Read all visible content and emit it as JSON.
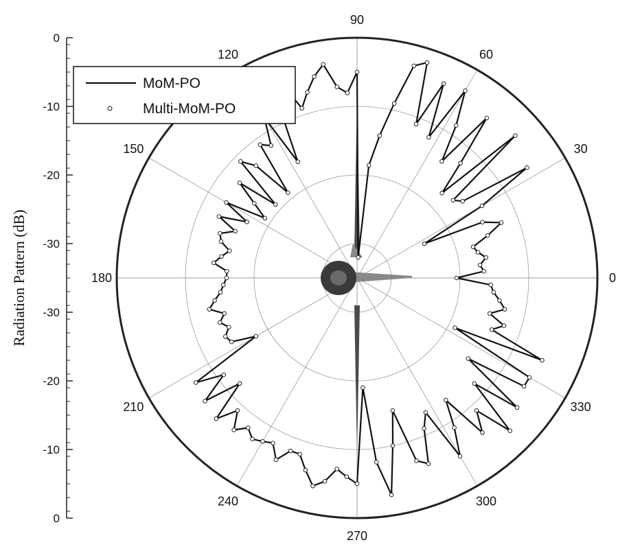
{
  "chart_data": {
    "type": "line",
    "subtype": "polar",
    "title": "",
    "ylabel": "Radiation Pattern (dB)",
    "radial_unit": "dB",
    "rlim": [
      -35,
      0
    ],
    "radial_tick_labels": [
      "0",
      "-10",
      "-20",
      "-30",
      "-30",
      "-20",
      "-10",
      "0"
    ],
    "angle_tick_labels": [
      "0",
      "30",
      "60",
      "90",
      "120",
      "150",
      "180",
      "210",
      "240",
      "270",
      "300",
      "330"
    ],
    "angle_unit": "deg",
    "grid": true,
    "legend": {
      "position": "top-left",
      "entries": [
        "MoM-PO",
        "Multi-MoM-PO"
      ]
    },
    "series": [
      {
        "name": "MoM-PO",
        "style": "solid-line",
        "angles": [
          0,
          3,
          6,
          9,
          12,
          15,
          18,
          21,
          24,
          27,
          30,
          33,
          36,
          39,
          42,
          45,
          48,
          51,
          54,
          57,
          60,
          63,
          66,
          69,
          72,
          75,
          78,
          81,
          84,
          87,
          90,
          93,
          96,
          99,
          102,
          105,
          108,
          111,
          114,
          117,
          120,
          123,
          126,
          129,
          132,
          135,
          138,
          141,
          144,
          147,
          150,
          153,
          156,
          159,
          162,
          165,
          168,
          171,
          174,
          177,
          180,
          183,
          186,
          189,
          192,
          195,
          198,
          201,
          204,
          207,
          210,
          213,
          216,
          219,
          222,
          225,
          228,
          231,
          234,
          237,
          240,
          243,
          246,
          249,
          252,
          255,
          258,
          261,
          264,
          267,
          270,
          273,
          276,
          279,
          282,
          285,
          288,
          291,
          294,
          297,
          300,
          303,
          306,
          309,
          312,
          315,
          318,
          321,
          324,
          327,
          330,
          333,
          336,
          339,
          342,
          345,
          348,
          351,
          354,
          357
        ],
        "values": [
          -20.5,
          -16.5,
          -17,
          -16,
          -17,
          -17.5,
          -15,
          -12.5,
          -15,
          -24,
          -14,
          -5.5,
          -16,
          -17,
          -4,
          -17.5,
          -12.5,
          -5,
          -14,
          -8.5,
          -3.5,
          -12,
          -4,
          -11,
          -2,
          -3,
          -9,
          -14,
          -18.5,
          -32,
          -5,
          -8,
          -7,
          -3.5,
          -5,
          -7,
          -9,
          -5,
          -5.5,
          -16,
          -8,
          -12,
          -11,
          -19,
          -13,
          -11,
          -19,
          -13,
          -16.5,
          -19,
          -13,
          -17,
          -13,
          -16,
          -14,
          -14.5,
          -16,
          -15,
          -14,
          -16,
          -16,
          -15.5,
          -15,
          -14,
          -13,
          -15,
          -14,
          -15,
          -14,
          -14.5,
          -18,
          -7,
          -11,
          -6.5,
          -12,
          -6,
          -9,
          -6.5,
          -8,
          -7,
          -7.5,
          -8,
          -6,
          -8,
          -8,
          -6,
          -4,
          -5,
          -7,
          -6,
          -5,
          -19,
          -8,
          -3,
          -10,
          -15,
          -7,
          -6,
          -11,
          -13,
          -5,
          -9,
          -13,
          -6,
          -9,
          -3.5,
          -12,
          -5,
          -15,
          -6,
          -6,
          -19,
          -5.5,
          -14,
          -12.5,
          -15,
          -13,
          -14,
          -15,
          -15.5
        ]
      },
      {
        "name": "Multi-MoM-PO",
        "style": "hollow-circle-markers",
        "angles": [
          0,
          3,
          6,
          9,
          12,
          15,
          18,
          21,
          24,
          27,
          30,
          33,
          36,
          39,
          42,
          45,
          48,
          51,
          54,
          57,
          60,
          63,
          66,
          69,
          72,
          75,
          78,
          81,
          84,
          87,
          90,
          93,
          96,
          99,
          102,
          105,
          108,
          111,
          114,
          117,
          120,
          123,
          126,
          129,
          132,
          135,
          138,
          141,
          144,
          147,
          150,
          153,
          156,
          159,
          162,
          165,
          168,
          171,
          174,
          177,
          180,
          183,
          186,
          189,
          192,
          195,
          198,
          201,
          204,
          207,
          210,
          213,
          216,
          219,
          222,
          225,
          228,
          231,
          234,
          237,
          240,
          243,
          246,
          249,
          252,
          255,
          258,
          261,
          264,
          267,
          270,
          273,
          276,
          279,
          282,
          285,
          288,
          291,
          294,
          297,
          300,
          303,
          306,
          309,
          312,
          315,
          318,
          321,
          324,
          327,
          330,
          333,
          336,
          339,
          342,
          345,
          348,
          351,
          354,
          357
        ],
        "values": [
          -20.5,
          -16.5,
          -17,
          -16,
          -17,
          -17.5,
          -15,
          -12.5,
          -15,
          -24,
          -14,
          -5.5,
          -16,
          -17,
          -4,
          -17.5,
          -12.5,
          -5,
          -14,
          -8.5,
          -3.5,
          -12,
          -4,
          -11,
          -2,
          -3,
          -9,
          -14,
          -18.5,
          -32,
          -5,
          -8,
          -7,
          -3.5,
          -5,
          -7,
          -9,
          -5,
          -5.5,
          -16,
          -8,
          -12,
          -11,
          -19,
          -13,
          -11,
          -19,
          -13,
          -16.5,
          -19,
          -13,
          -17,
          -13,
          -16,
          -14,
          -14.5,
          -16,
          -15,
          -14,
          -16,
          -16,
          -15.5,
          -15,
          -14,
          -13,
          -15,
          -14,
          -15,
          -14,
          -14.5,
          -18,
          -7,
          -11,
          -6.5,
          -12,
          -6,
          -9,
          -6.5,
          -8,
          -7,
          -7.5,
          -8,
          -6,
          -8,
          -8,
          -6,
          -4,
          -5,
          -7,
          -6,
          -5,
          -19,
          -8,
          -3,
          -10,
          -15,
          -7,
          -6,
          -11,
          -13,
          -5,
          -9,
          -13,
          -6,
          -9,
          -3.5,
          -12,
          -5,
          -15,
          -6,
          -6,
          -19,
          -5.5,
          -14,
          -12.5,
          -15,
          -13,
          -14,
          -15,
          -15.5
        ]
      }
    ]
  },
  "colors": {
    "line": "#111111",
    "grid": "#9a9a9a",
    "axis": "#222222",
    "marker_fill": "#ffffff",
    "aircraft_dark": "#4a4a4a",
    "aircraft_light": "#8a8a8a"
  }
}
